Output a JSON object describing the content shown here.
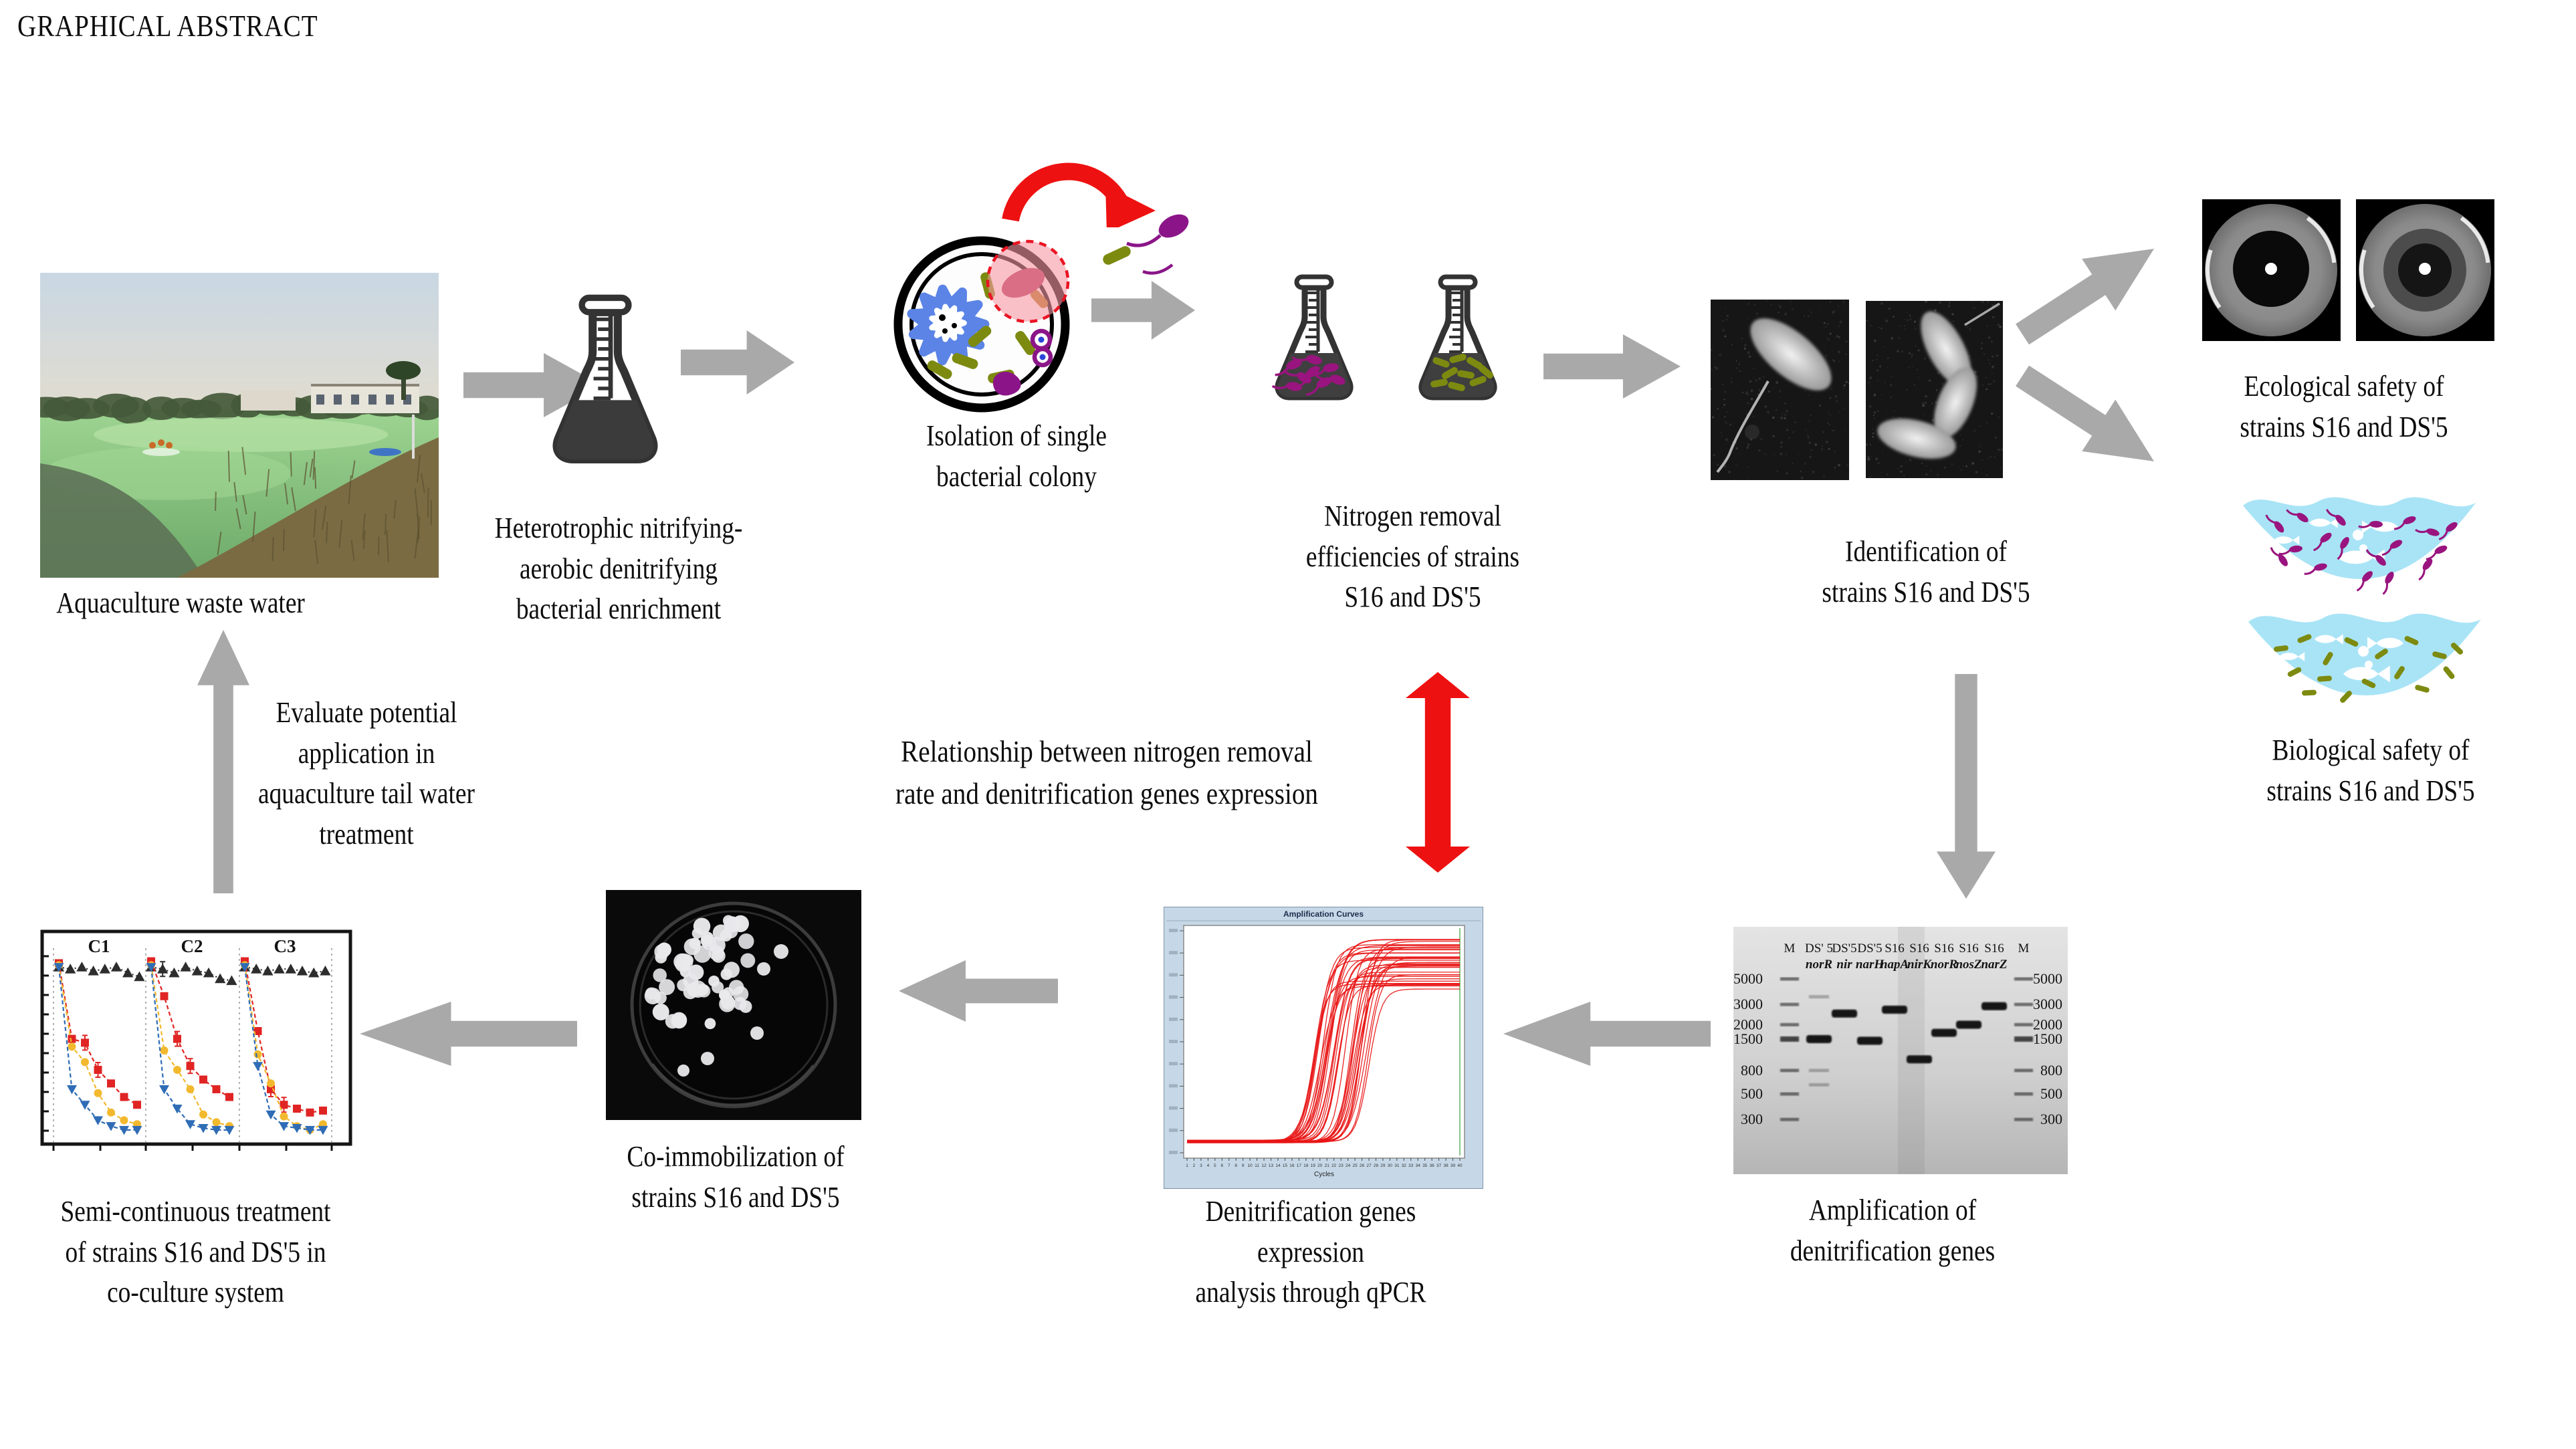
{
  "title": "GRAPHICAL ABSTRACT",
  "accent_colors": {
    "arrow_gray": "#a9a9a9",
    "arrow_red": "#ee1111",
    "strain_magenta": "#99147e",
    "strain_olive": "#7d8a10",
    "water_blue": "#a9e4f6"
  },
  "nodes": {
    "pond": {
      "label": "Aquaculture waste water"
    },
    "enrichment": {
      "label": "Heterotrophic nitrifying-\naerobic denitrifying\nbacterial enrichment"
    },
    "isolation": {
      "label": "Isolation of single\nbacterial colony"
    },
    "nitrogen": {
      "label": "Nitrogen removal\nefficiencies of strains\nS16 and DS'5"
    },
    "identification": {
      "label": "Identification of\nstrains S16 and DS'5"
    },
    "ecological": {
      "label": "Ecological safety of\nstrains S16 and DS'5"
    },
    "biological": {
      "label": "Biological safety of\nstrains S16 and DS'5"
    },
    "amplification": {
      "label": "Amplification of\ndenitrification genes"
    },
    "qpcr": {
      "label": "Denitrification genes expression\nanalysis through qPCR"
    },
    "coimmobilization": {
      "label": "Co-immobilization of\nstrains S16 and DS'5"
    },
    "semicontinuous": {
      "label": "Semi-continuous treatment\nof strains S16 and DS'5 in\nco-culture system"
    },
    "evaluate": {
      "label": "Evaluate potential\napplication in\naquaculture tail water\ntreatment"
    },
    "relationship": {
      "label": "Relationship between nitrogen removal\nrate and denitrification genes expression"
    }
  },
  "chart_data": [
    {
      "id": "qpcr-curves",
      "type": "line",
      "title": "Amplification Curves",
      "xlabel": "Cycles",
      "x_ticks": [
        1,
        2,
        3,
        4,
        5,
        6,
        7,
        8,
        9,
        10,
        11,
        12,
        13,
        14,
        15,
        16,
        17,
        18,
        19,
        20,
        21,
        22,
        23,
        24,
        25,
        26,
        27,
        28,
        29,
        30,
        31,
        32,
        33,
        34,
        35,
        36,
        37,
        38,
        39,
        40
      ],
      "x_range": [
        1,
        40
      ],
      "curve_count": 38,
      "curve_color": "#e81616",
      "curve_shape": "sigmoid",
      "midpoint_cycle_range": [
        19,
        27
      ],
      "plateau_range": [
        0.74,
        0.97
      ],
      "baseline": 0.045,
      "legend_position": "none",
      "grid": false
    },
    {
      "id": "semi-chart",
      "type": "line",
      "panels": [
        "C1",
        "C2",
        "C3"
      ],
      "ylim": [
        0,
        100
      ],
      "grid": false,
      "series": [
        {
          "name": "control",
          "marker": "triangle-up",
          "color": "#2d2d2d",
          "panel_values": [
            [
              93,
              92,
              93,
              91,
              92,
              93,
              90,
              88
            ],
            [
              93,
              92,
              90,
              93,
              91,
              90,
              87,
              86
            ],
            [
              93,
              92,
              91,
              92,
              92,
              91,
              90,
              91
            ]
          ]
        },
        {
          "name": "series-red",
          "marker": "square",
          "color": "#e02424",
          "panel_values": [
            [
              95,
              56,
              54,
              40,
              33,
              26,
              22
            ],
            [
              96,
              78,
              56,
              42,
              35,
              30,
              26
            ],
            [
              96,
              60,
              30,
              22,
              20,
              18,
              19
            ]
          ]
        },
        {
          "name": "series-gold",
          "marker": "circle",
          "color": "#f2b92e",
          "panel_values": [
            [
              94,
              52,
              44,
              28,
              18,
              14,
              12
            ],
            [
              94,
              50,
              40,
              30,
              17,
              13,
              11
            ],
            [
              94,
              48,
              33,
              16,
              11,
              9,
              12
            ]
          ]
        },
        {
          "name": "series-blue",
          "marker": "triangle-down",
          "color": "#2f6cb5",
          "panel_values": [
            [
              93,
              30,
              22,
              14,
              11,
              9,
              9
            ],
            [
              93,
              30,
              20,
              12,
              10,
              9,
              9
            ],
            [
              93,
              42,
              17,
              11,
              10,
              9,
              9
            ]
          ]
        }
      ]
    },
    {
      "id": "gel",
      "type": "table",
      "ladder_bp": [
        5000,
        3000,
        2000,
        1500,
        800,
        500,
        300
      ],
      "lanes": [
        {
          "label": "M"
        },
        {
          "label": "DS' 5",
          "gene": "norR",
          "band_bp": 1500,
          "extra_bands_bp": [
            3500,
            800,
            600
          ]
        },
        {
          "label": "DS'5",
          "gene": "nir",
          "band_bp": 2500
        },
        {
          "label": "DS'5",
          "gene": "narH",
          "band_bp": 1450
        },
        {
          "label": "S16",
          "gene": "napA",
          "band_bp": 2700
        },
        {
          "label": "S16",
          "gene": "nirK",
          "band_bp": 1000
        },
        {
          "label": "S16",
          "gene": "norR",
          "band_bp": 1700
        },
        {
          "label": "S16",
          "gene": "nosZ",
          "band_bp": 2000
        },
        {
          "label": "S16",
          "gene": "narZ",
          "band_bp": 2900
        },
        {
          "label": "M"
        }
      ]
    }
  ]
}
